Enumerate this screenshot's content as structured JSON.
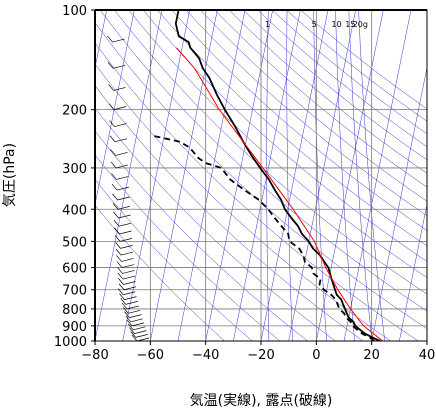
{
  "chart_data": {
    "type": "line",
    "chart_kind": "skew-T log-P diagram",
    "xlabel": "気温(実線), 露点(破線)",
    "ylabel": "気圧(hPa)",
    "xlim": [
      -80,
      40
    ],
    "ylim": [
      1000,
      100
    ],
    "y_scale": "log",
    "x_ticks": [
      -80,
      -60,
      -40,
      -20,
      0,
      20,
      40
    ],
    "y_ticks": [
      100,
      200,
      300,
      400,
      500,
      600,
      700,
      800,
      900,
      1000
    ],
    "x_tick_labels": [
      "−80",
      "−60",
      "−40",
      "−20",
      "0",
      "20",
      "40"
    ],
    "y_tick_labels": [
      "100",
      "200",
      "300",
      "400",
      "500",
      "600",
      "700",
      "800",
      "900",
      "1000"
    ],
    "mixing_ratio_labels": [
      "1",
      "5",
      "10",
      "15",
      "20g"
    ],
    "grid": true,
    "colors": {
      "temperature": "#000000",
      "dewpoint": "#000000",
      "reference_curve": "#ff0000",
      "background_lines": "#3333cc",
      "wind_barbs": "#000000"
    },
    "series": [
      {
        "role": "temperature",
        "style": "solid",
        "points": [
          [
            1000,
            23
          ],
          [
            975,
            20
          ],
          [
            950,
            17
          ],
          [
            925,
            15
          ],
          [
            900,
            13
          ],
          [
            875,
            12
          ],
          [
            850,
            10
          ],
          [
            825,
            9
          ],
          [
            800,
            8
          ],
          [
            775,
            7
          ],
          [
            750,
            6
          ],
          [
            725,
            4
          ],
          [
            700,
            3
          ],
          [
            650,
            1
          ],
          [
            600,
            -1
          ],
          [
            575,
            -3
          ],
          [
            550,
            -5
          ],
          [
            525,
            -8
          ],
          [
            500,
            -10
          ],
          [
            475,
            -13
          ],
          [
            450,
            -15
          ],
          [
            425,
            -18
          ],
          [
            400,
            -21
          ],
          [
            375,
            -23
          ],
          [
            350,
            -26
          ],
          [
            325,
            -29
          ],
          [
            300,
            -33
          ],
          [
            275,
            -37
          ],
          [
            250,
            -41
          ],
          [
            225,
            -45
          ],
          [
            200,
            -50
          ],
          [
            180,
            -54
          ],
          [
            160,
            -58
          ],
          [
            150,
            -61
          ],
          [
            140,
            -63
          ],
          [
            130,
            -67
          ],
          [
            125,
            -68
          ],
          [
            120,
            -72
          ],
          [
            110,
            -74
          ],
          [
            100,
            -74
          ]
        ]
      },
      {
        "role": "dewpoint",
        "style": "dashed",
        "points": [
          [
            1000,
            21
          ],
          [
            975,
            19
          ],
          [
            950,
            16
          ],
          [
            925,
            14
          ],
          [
            900,
            12
          ],
          [
            875,
            11
          ],
          [
            850,
            9
          ],
          [
            825,
            8
          ],
          [
            800,
            6
          ],
          [
            775,
            5
          ],
          [
            750,
            4
          ],
          [
            725,
            2
          ],
          [
            700,
            -1
          ],
          [
            675,
            -3
          ],
          [
            650,
            -3
          ],
          [
            625,
            -6
          ],
          [
            600,
            -7
          ],
          [
            575,
            -10
          ],
          [
            550,
            -11
          ],
          [
            525,
            -13
          ],
          [
            500,
            -17
          ],
          [
            475,
            -18
          ],
          [
            450,
            -21
          ],
          [
            425,
            -24
          ],
          [
            400,
            -27
          ],
          [
            375,
            -31
          ],
          [
            350,
            -37
          ],
          [
            325,
            -43
          ],
          [
            300,
            -47
          ],
          [
            290,
            -53
          ],
          [
            280,
            -56
          ],
          [
            270,
            -58
          ],
          [
            260,
            -60
          ],
          [
            250,
            -64
          ],
          [
            240,
            -74
          ]
        ]
      },
      {
        "role": "reference_curve",
        "style": "solid",
        "points": [
          [
            1000,
            24
          ],
          [
            900,
            16
          ],
          [
            800,
            10
          ],
          [
            700,
            4
          ],
          [
            600,
            -2
          ],
          [
            500,
            -8
          ],
          [
            400,
            -18
          ],
          [
            300,
            -32
          ],
          [
            200,
            -52
          ],
          [
            150,
            -64
          ],
          [
            130,
            -72
          ]
        ]
      }
    ]
  }
}
